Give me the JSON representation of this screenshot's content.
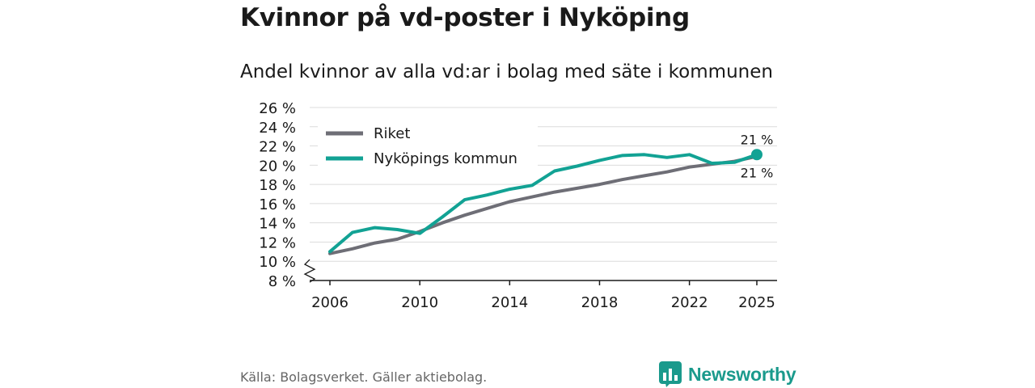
{
  "title": "Kvinnor på vd-poster i Nyköping",
  "subtitle": "Andel kvinnor av alla vd:ar i bolag med säte i kommunen",
  "source": "Källa: Bolagsverket. Gäller aktiebolag.",
  "brand": "Newsworthy",
  "colors": {
    "riket": "#6e6e76",
    "nykoping": "#12a294",
    "grid": "#dcdcdc",
    "axis": "#1a1a1a"
  },
  "chart_data": {
    "type": "line",
    "title": "Kvinnor på vd-poster i Nyköping",
    "subtitle": "Andel kvinnor av alla vd:ar i bolag med säte i kommunen",
    "xlabel": "",
    "ylabel": "",
    "ylim": [
      8,
      26
    ],
    "y_ticks": [
      8,
      10,
      12,
      14,
      16,
      18,
      20,
      22,
      24,
      26
    ],
    "y_tick_labels": [
      "8 %",
      "10 %",
      "12 %",
      "14 %",
      "16 %",
      "18 %",
      "20 %",
      "22 %",
      "24 %",
      "26 %"
    ],
    "x_ticks": [
      2006,
      2010,
      2014,
      2018,
      2022,
      2025
    ],
    "x_tick_labels": [
      "2006",
      "2010",
      "2014",
      "2018",
      "2022",
      "2025"
    ],
    "xlim": [
      2005.1,
      2025.9
    ],
    "axis_break": true,
    "grid": true,
    "legend_position": "top-left",
    "series": [
      {
        "name": "Riket",
        "color": "#6e6e76",
        "x": [
          2006,
          2007,
          2008,
          2009,
          2010,
          2011,
          2012,
          2013,
          2014,
          2015,
          2016,
          2017,
          2018,
          2019,
          2020,
          2021,
          2022,
          2023,
          2024,
          2025
        ],
        "values": [
          10.8,
          11.3,
          11.9,
          12.3,
          13.1,
          14.0,
          14.8,
          15.5,
          16.2,
          16.7,
          17.2,
          17.6,
          18.0,
          18.5,
          18.9,
          19.3,
          19.8,
          20.1,
          20.4,
          20.9
        ],
        "end_label": "21 %"
      },
      {
        "name": "Nyköpings kommun",
        "color": "#12a294",
        "x": [
          2006,
          2007,
          2008,
          2009,
          2010,
          2011,
          2012,
          2013,
          2014,
          2015,
          2016,
          2017,
          2018,
          2019,
          2020,
          2021,
          2022,
          2023,
          2024,
          2025
        ],
        "values": [
          11.0,
          13.0,
          13.5,
          13.3,
          12.9,
          14.6,
          16.4,
          16.9,
          17.5,
          17.9,
          19.4,
          19.9,
          20.5,
          21.0,
          21.1,
          20.8,
          21.1,
          20.2,
          20.3,
          21.1
        ],
        "end_label": "21 %"
      }
    ]
  }
}
